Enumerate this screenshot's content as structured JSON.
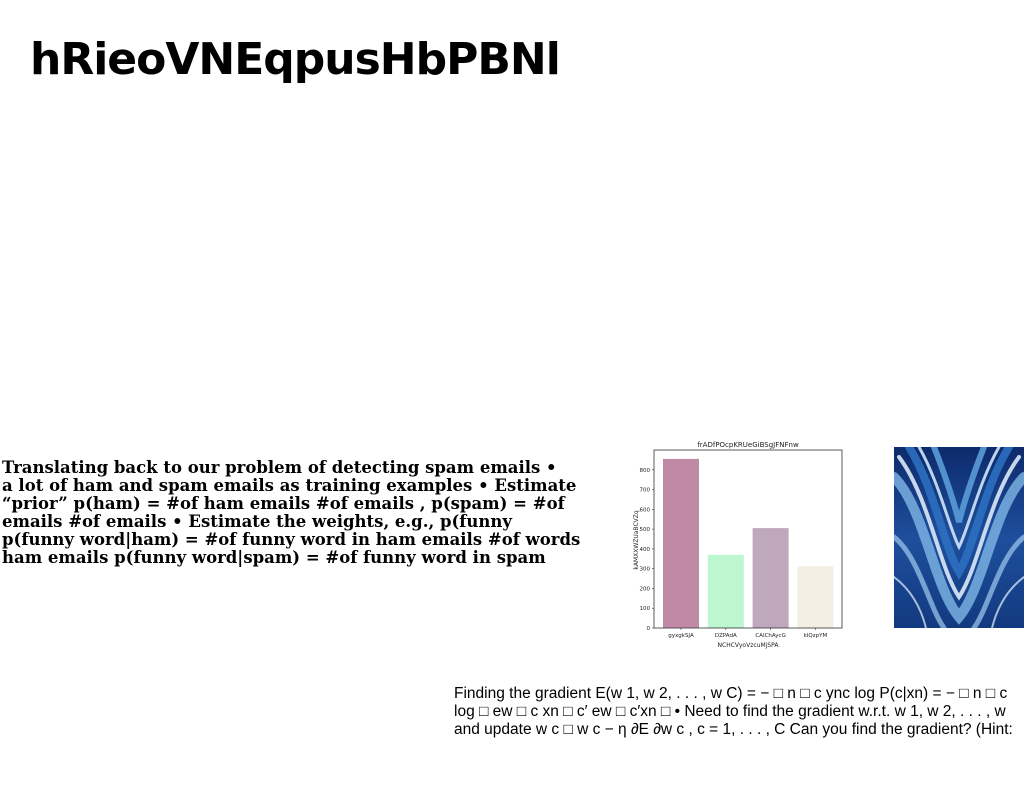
{
  "slide": {
    "title": "hRieoVNEqpusHbPBNl"
  },
  "spam_text": {
    "lines": [
      "Translating back to our problem of detecting spam emails •",
      "a lot of ham and spam emails as training examples • Estimate",
      "“prior” p(ham) = #of ham emails #of emails , p(spam) = #of",
      "emails #of emails • Estimate the weights, e.g., p(funny",
      "p(funny word|ham) = #of funny word in ham emails #of words",
      "ham emails p(funny word|spam) = #of funny word in spam"
    ]
  },
  "gradient_text": {
    "lines": [
      "Finding the gradient E(w 1, w 2, . . . , w C) = − □ n □ c ync log P(c|xn) = − □ n □ c",
      "log □ ew □ c xn □ c′ ew □ c′xn □ • Need to find the gradient w.r.t. w 1, w 2, . . . , w",
      "and update w c □ w c − η ∂E ∂w c , c = 1, . . . , C Can you find the gradient? (Hint:"
    ]
  },
  "image": {
    "icon": "abstract-blue-marble-art",
    "colors": [
      "#0d2a6b",
      "#2c6fc0",
      "#7fb6e6",
      "#e8f3ff"
    ]
  },
  "chart_data": {
    "type": "bar",
    "title": "frADfPOcpKRUeGiBSgJFNFnw",
    "xlabel": "NCHCVyoVzcuMjSPA",
    "ylabel": "kAMXXWZUaBCVZq",
    "categories": [
      "gyxgkSJA",
      "DZPAdA",
      "CAIChAycG",
      "kIQzpYM"
    ],
    "values": [
      855,
      370,
      505,
      312
    ],
    "colors": [
      "#c08aa6",
      "#bdf7d0",
      "#bfa8bb",
      "#f3efe4"
    ],
    "ylim": [
      0,
      900
    ],
    "yticks": [
      0,
      100,
      200,
      300,
      400,
      500,
      600,
      700,
      800
    ],
    "grid": false
  }
}
